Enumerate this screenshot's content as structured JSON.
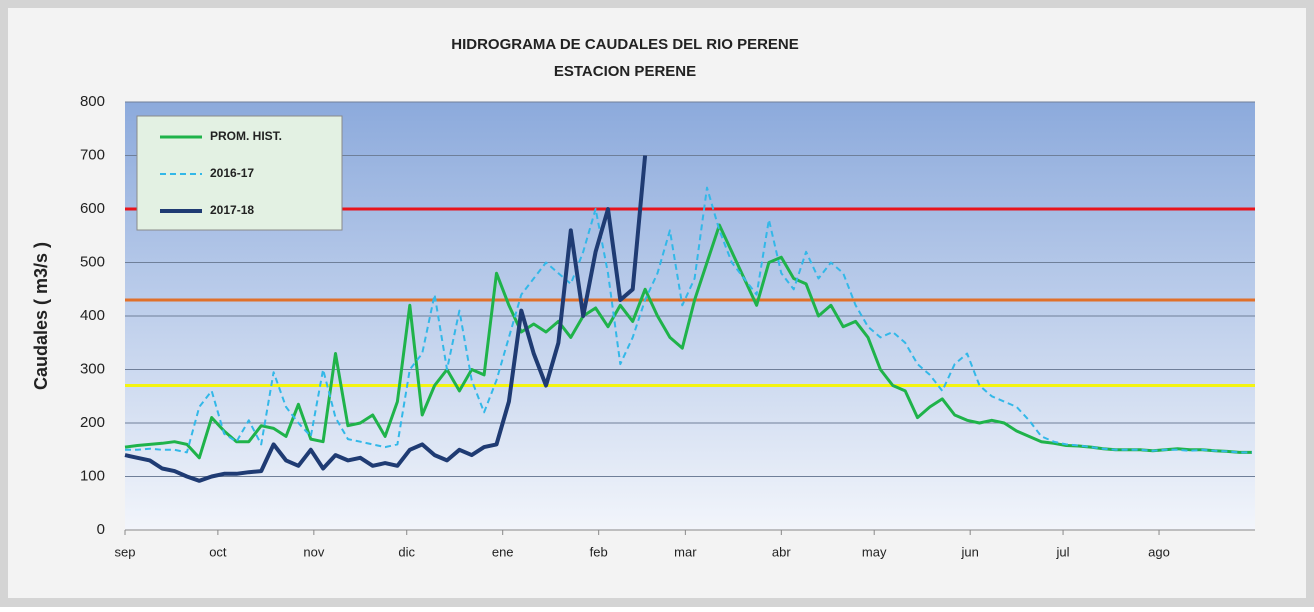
{
  "chart_data": {
    "type": "line",
    "title": [
      "HIDROGRAMA DE CAUDALES DEL RIO PERENE",
      "ESTACION PERENE"
    ],
    "y_label": "Caudales ( m3/s )",
    "xlim": [
      0,
      365
    ],
    "ylim": [
      0,
      800
    ],
    "yticks": [
      0,
      100,
      200,
      300,
      400,
      500,
      600,
      700,
      800
    ],
    "xticks": [
      {
        "value": 0,
        "label": "sep"
      },
      {
        "value": 30,
        "label": "oct"
      },
      {
        "value": 61,
        "label": "nov"
      },
      {
        "value": 91,
        "label": "dic"
      },
      {
        "value": 122,
        "label": "ene"
      },
      {
        "value": 153,
        "label": "feb"
      },
      {
        "value": 181,
        "label": "mar"
      },
      {
        "value": 212,
        "label": "abr"
      },
      {
        "value": 242,
        "label": "may"
      },
      {
        "value": 273,
        "label": "jun"
      },
      {
        "value": 303,
        "label": "jul"
      },
      {
        "value": 334,
        "label": "ago"
      }
    ],
    "grid": true,
    "legend": "upper left",
    "reference_lines": [
      {
        "value": 600,
        "color": "#e8141b"
      },
      {
        "value": 430,
        "color": "#e0702a"
      },
      {
        "value": 270,
        "color": "#f4f410"
      }
    ],
    "x": [
      0,
      4,
      8,
      12,
      16,
      20,
      24,
      28,
      32,
      36,
      40,
      44,
      48,
      52,
      56,
      60,
      64,
      68,
      72,
      76,
      80,
      84,
      88,
      92,
      96,
      100,
      104,
      108,
      112,
      116,
      120,
      124,
      128,
      132,
      136,
      140,
      144,
      148,
      152,
      156,
      160,
      164,
      168,
      172,
      176,
      180,
      184,
      188,
      192,
      196,
      200,
      204,
      208,
      212,
      216,
      220,
      224,
      228,
      232,
      236,
      240,
      244,
      248,
      252,
      256,
      260,
      264,
      268,
      272,
      276,
      280,
      284,
      288,
      292,
      296,
      300,
      304,
      308,
      312,
      316,
      320,
      324,
      328,
      332,
      336,
      340,
      344,
      348,
      352,
      356,
      360,
      364
    ],
    "series": [
      {
        "name": "PROM. HIST.",
        "color": "#1fb34a",
        "dash": "solid",
        "width": 3,
        "values": [
          155,
          158,
          160,
          162,
          165,
          160,
          135,
          210,
          185,
          165,
          165,
          195,
          190,
          175,
          235,
          170,
          165,
          330,
          195,
          200,
          215,
          175,
          240,
          420,
          215,
          270,
          300,
          260,
          300,
          290,
          480,
          420,
          370,
          385,
          370,
          390,
          360,
          400,
          415,
          380,
          420,
          390,
          450,
          400,
          360,
          340,
          430,
          500,
          570,
          520,
          470,
          420,
          500,
          510,
          470,
          460,
          400,
          420,
          380,
          390,
          360,
          300,
          270,
          260,
          210,
          230,
          245,
          215,
          205,
          200,
          205,
          200,
          185,
          175,
          165,
          162,
          158,
          157,
          155,
          152,
          150,
          150,
          150,
          148,
          150,
          152,
          150,
          150,
          148,
          147,
          145,
          145
        ]
      },
      {
        "name": "2016-17",
        "color": "#33b8e8",
        "dash": "dashed",
        "width": 2,
        "values": [
          150,
          150,
          152,
          150,
          150,
          145,
          230,
          260,
          180,
          165,
          205,
          160,
          295,
          230,
          200,
          175,
          300,
          210,
          170,
          165,
          160,
          155,
          160,
          300,
          330,
          440,
          300,
          410,
          280,
          220,
          280,
          360,
          440,
          470,
          500,
          480,
          460,
          520,
          600,
          480,
          310,
          360,
          430,
          480,
          560,
          420,
          470,
          640,
          560,
          500,
          470,
          440,
          580,
          480,
          450,
          520,
          470,
          500,
          480,
          420,
          380,
          360,
          370,
          350,
          310,
          290,
          260,
          310,
          330,
          270,
          250,
          240,
          230,
          205,
          175,
          165,
          160,
          158,
          155,
          152,
          150,
          150,
          150,
          148,
          150,
          150,
          148,
          150,
          148,
          147,
          145,
          145
        ]
      },
      {
        "name": "2017-18",
        "color": "#1f3b73",
        "dash": "solid",
        "width": 4,
        "values": [
          140,
          135,
          130,
          115,
          110,
          100,
          92,
          100,
          105,
          105,
          108,
          110,
          160,
          130,
          120,
          150,
          115,
          140,
          130,
          135,
          120,
          125,
          120,
          150,
          160,
          140,
          130,
          150,
          140,
          155,
          160,
          240,
          410,
          330,
          270,
          350,
          560,
          400,
          520,
          600,
          430,
          450,
          700,
          null,
          null,
          null,
          null,
          null,
          null,
          null,
          null,
          null,
          null,
          null,
          null,
          null,
          null,
          null,
          null,
          null,
          null,
          null,
          null,
          null,
          null,
          null,
          null,
          null,
          null,
          null,
          null,
          null,
          null,
          null,
          null,
          null,
          null,
          null,
          null,
          null,
          null,
          null,
          null,
          null,
          null,
          null,
          null,
          null,
          null,
          null,
          null,
          null
        ]
      }
    ]
  }
}
